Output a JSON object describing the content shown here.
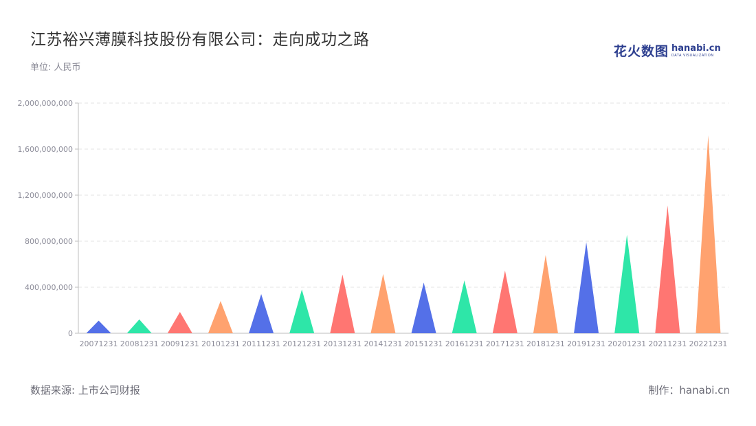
{
  "header": {
    "title": "江苏裕兴薄膜科技股份有限公司：走向成功之路",
    "unit": "单位: 人民币"
  },
  "logo": {
    "cn": "花火数图",
    "en": "hanabi.cn",
    "sub": "DATA VISUALIZATION"
  },
  "footer": {
    "source": "数据来源: 上市公司财报",
    "maker": "制作：hanabi.cn"
  },
  "colors": {
    "palette": [
      "#5470e8",
      "#2ee6a8",
      "#ff7672",
      "#ffa26f"
    ],
    "grid": "#e3e3e3",
    "axis": "#bdbdbd"
  },
  "chart_data": {
    "type": "bar",
    "bar_shape": "triangle",
    "categories": [
      "20071231",
      "20081231",
      "20091231",
      "20101231",
      "20111231",
      "20121231",
      "20131231",
      "20141231",
      "20151231",
      "20161231",
      "20171231",
      "20181231",
      "20191231",
      "20201231",
      "20211231",
      "20221231"
    ],
    "values": [
      110000000,
      120000000,
      185000000,
      280000000,
      340000000,
      380000000,
      510000000,
      515000000,
      440000000,
      460000000,
      545000000,
      680000000,
      790000000,
      855000000,
      1110000000,
      1720000000
    ],
    "ylim": [
      0,
      2000000000
    ],
    "yticks": [
      0,
      400000000,
      800000000,
      1200000000,
      1600000000,
      2000000000
    ],
    "ytick_labels": [
      "0",
      "400,000,000",
      "800,000,000",
      "1,200,000,000",
      "1,600,000,000",
      "2,000,000,000"
    ],
    "grid": true
  }
}
